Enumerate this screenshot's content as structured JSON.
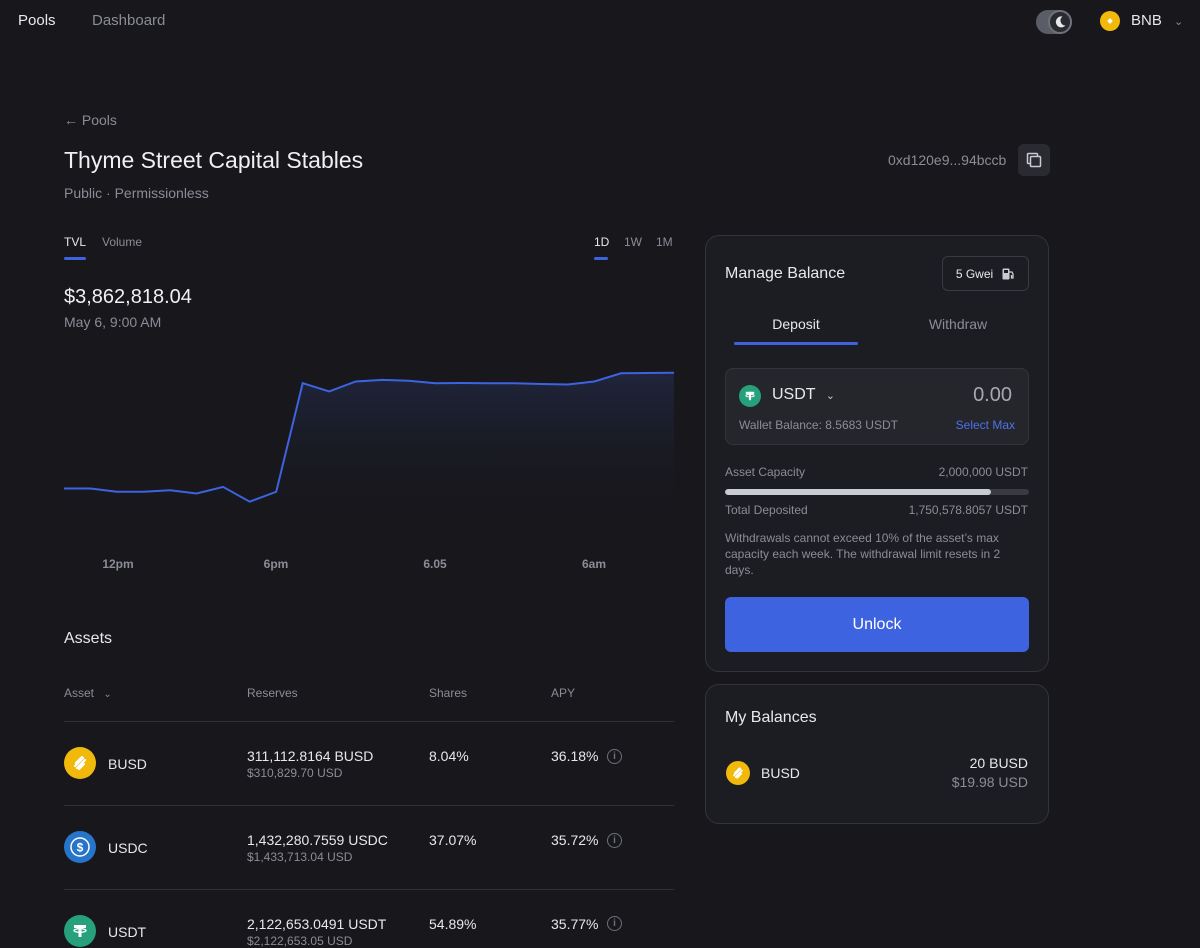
{
  "nav": {
    "pools": "Pools",
    "dashboard": "Dashboard",
    "network": "BNB"
  },
  "header": {
    "back": "← Pools",
    "title": "Thyme Street Capital Stables",
    "subtitle": "Public · Permissionless",
    "address": "0xd120e9...94bccb"
  },
  "chart_tabs": {
    "tvl": "TVL",
    "volume": "Volume",
    "d1": "1D",
    "w1": "1W",
    "m1": "1M"
  },
  "chart_value": "$3,862,818.04",
  "chart_time": "May 6, 9:00 AM",
  "chart_data": {
    "type": "area",
    "x_ticks": [
      "12pm",
      "6pm",
      "6.05",
      "6am"
    ],
    "values": [
      3200000,
      3200000,
      3180000,
      3180000,
      3190000,
      3170000,
      3210000,
      3120000,
      3180000,
      3840000,
      3790000,
      3850000,
      3860000,
      3855000,
      3840000,
      3841000,
      3840000,
      3839000,
      3835000,
      3832000,
      3850000,
      3900000,
      3902000,
      3903000
    ]
  },
  "assets": {
    "title": "Assets",
    "headers": {
      "asset": "Asset",
      "reserves": "Reserves",
      "shares": "Shares",
      "apy": "APY"
    },
    "rows": [
      {
        "name": "BUSD",
        "reserve": "311,112.8164 BUSD",
        "reserve_usd": "$310,829.70 USD",
        "shares": "8.04%",
        "apy": "36.18%"
      },
      {
        "name": "USDC",
        "reserve": "1,432,280.7559 USDC",
        "reserve_usd": "$1,433,713.04 USD",
        "shares": "37.07%",
        "apy": "35.72%"
      },
      {
        "name": "USDT",
        "reserve": "2,122,653.0491 USDT",
        "reserve_usd": "$2,122,653.05 USD",
        "shares": "54.89%",
        "apy": "35.77%"
      }
    ]
  },
  "manage": {
    "title": "Manage Balance",
    "gas": "5 Gwei",
    "deposit": "Deposit",
    "withdraw": "Withdraw",
    "token": "USDT",
    "amount": "0.00",
    "wallet_balance": "Wallet Balance: 8.5683 USDT",
    "select_max": "Select Max",
    "capacity_label": "Asset Capacity",
    "capacity_value": "2,000,000 USDT",
    "capacity_fill": 0.875,
    "deposited_label": "Total Deposited",
    "deposited_value": "1,750,578.8057 USDT",
    "notice": "Withdrawals cannot exceed 10% of the asset’s max capacity each week. The withdrawal limit resets in 2 days.",
    "unlock": "Unlock"
  },
  "balances": {
    "title": "My Balances",
    "token": "BUSD",
    "amount": "20 BUSD",
    "usd": "$19.98 USD"
  }
}
